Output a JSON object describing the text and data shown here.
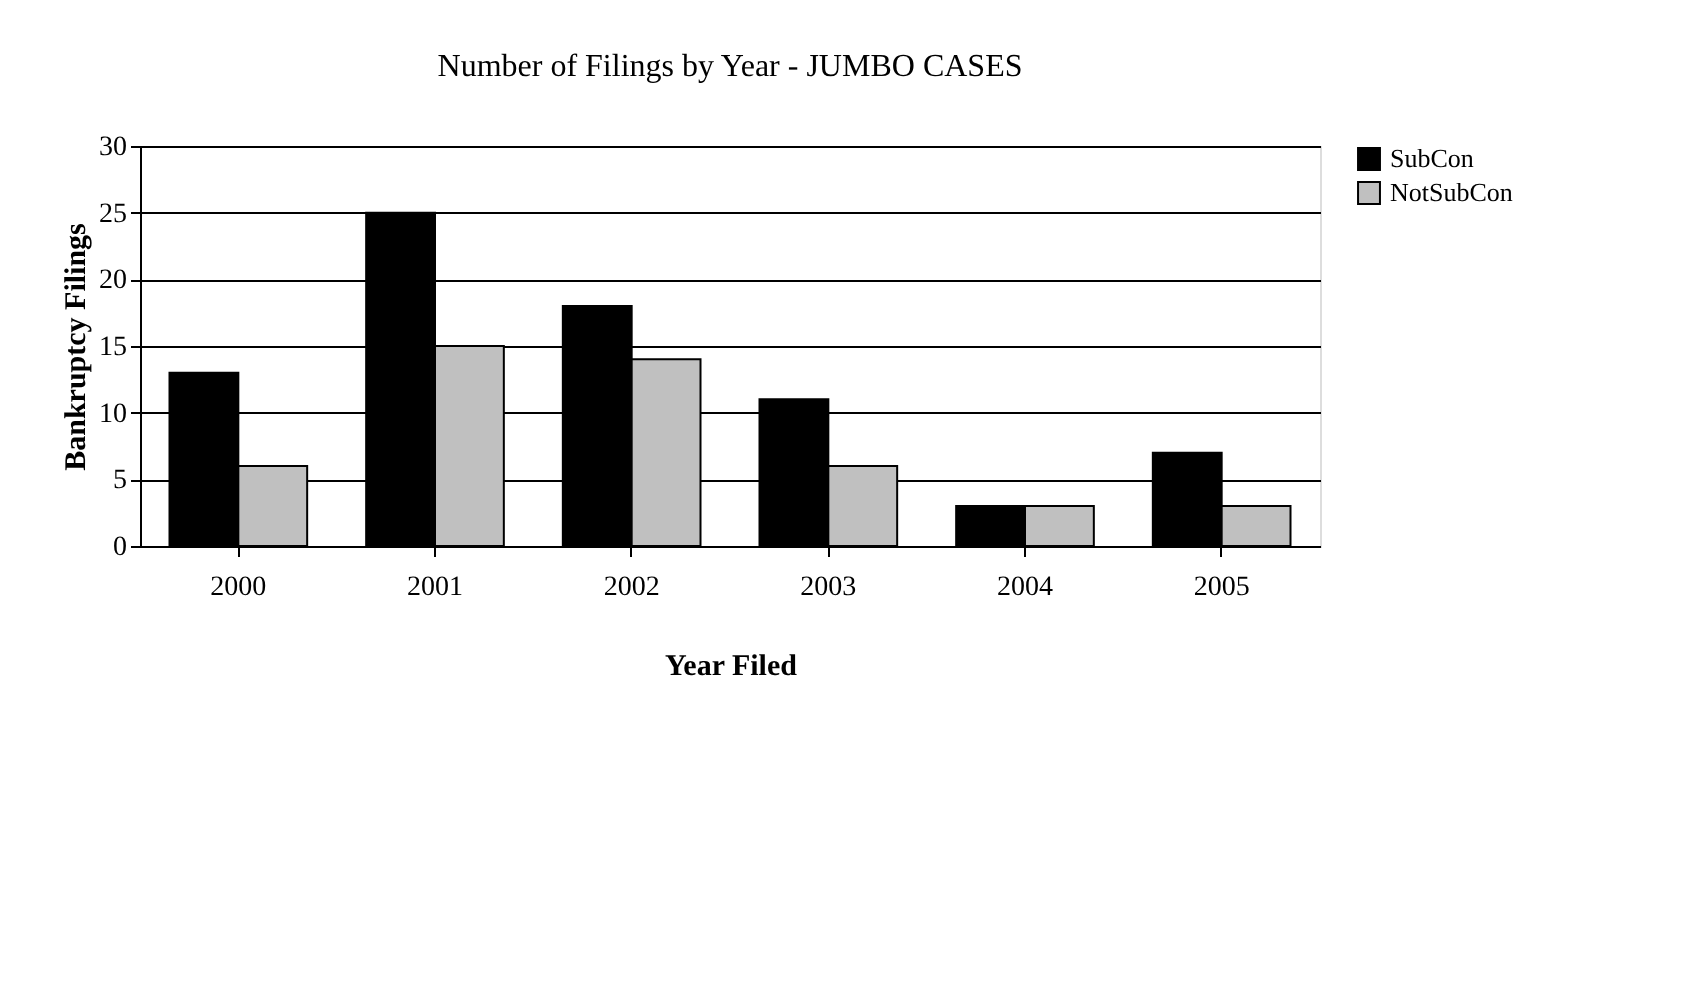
{
  "chart_data": {
    "type": "bar",
    "title": "Number of Filings by Year - JUMBO CASES",
    "xlabel": "Year Filed",
    "ylabel": "Bankruptcy Filings",
    "categories": [
      "2000",
      "2001",
      "2002",
      "2003",
      "2004",
      "2005"
    ],
    "series": [
      {
        "name": "SubCon",
        "color": "#000000",
        "values": [
          13,
          25,
          18,
          11,
          3,
          7
        ]
      },
      {
        "name": "NotSubCon",
        "color": "#c0c0c0",
        "values": [
          6,
          15,
          14,
          6,
          3,
          3
        ]
      }
    ],
    "ylim": [
      0,
      30
    ],
    "yticks": [
      0,
      5,
      10,
      15,
      20,
      25,
      30
    ],
    "grid": "y",
    "legend": "right"
  }
}
